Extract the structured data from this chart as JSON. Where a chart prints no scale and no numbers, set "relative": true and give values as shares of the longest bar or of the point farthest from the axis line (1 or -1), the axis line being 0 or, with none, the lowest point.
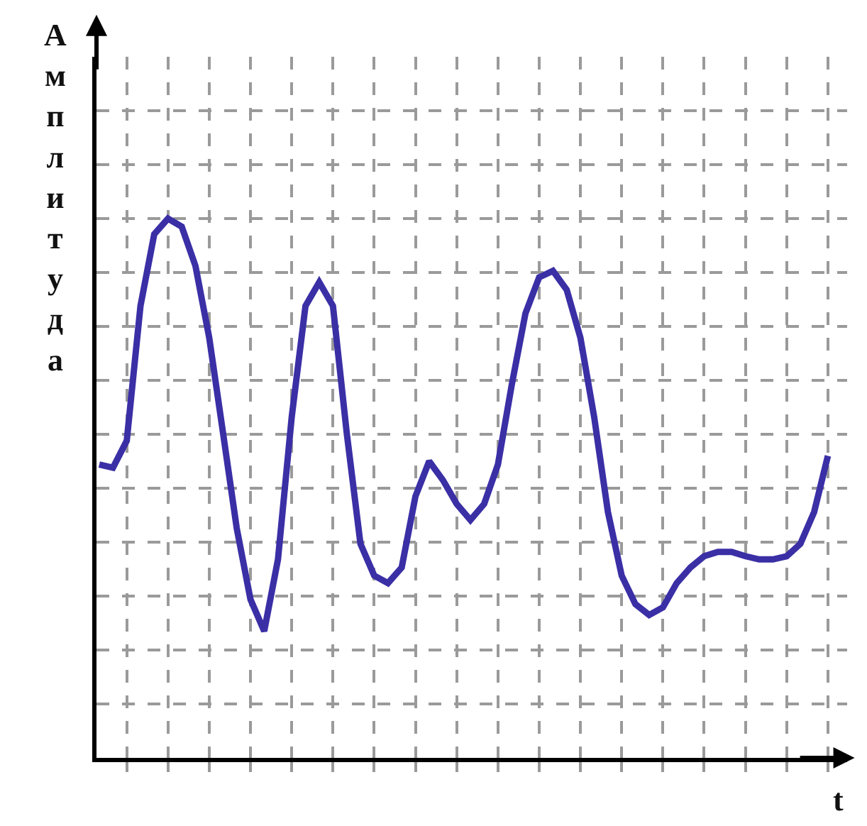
{
  "chart_data": {
    "type": "line",
    "xlabel": "t",
    "ylabel": "Амплитуда",
    "relative": true,
    "grid": true,
    "marker": "none",
    "line_style": "solid",
    "categories": [
      null,
      null,
      null,
      null,
      null,
      null,
      null,
      null,
      null,
      null,
      null,
      null,
      null,
      null,
      null,
      null,
      null,
      null,
      null,
      null,
      null,
      null,
      null,
      null,
      null,
      null,
      null,
      null,
      null,
      null,
      null,
      null,
      null,
      null,
      null,
      null,
      null,
      null,
      null,
      null,
      null,
      null,
      null,
      null,
      null,
      null,
      null,
      null,
      null,
      null,
      null,
      null,
      null,
      null
    ],
    "series": [
      {
        "color": "#3b2fa6",
        "values": [
          0.544,
          0.538,
          0.588,
          0.838,
          0.971,
          1,
          0.985,
          0.912,
          0.779,
          0.603,
          0.426,
          0.294,
          0.235,
          0.368,
          0.632,
          0.838,
          0.882,
          0.838,
          0.603,
          0.397,
          0.338,
          0.324,
          0.353,
          0.485,
          0.55,
          0.515,
          0.471,
          0.441,
          0.471,
          0.544,
          0.691,
          0.824,
          0.891,
          0.903,
          0.868,
          0.779,
          0.632,
          0.456,
          0.338,
          0.285,
          0.265,
          0.279,
          0.324,
          0.353,
          0.374,
          0.382,
          0.382,
          0.374,
          0.368,
          0.368,
          0.374,
          0.397,
          0.456,
          0.56
        ]
      }
    ]
  }
}
